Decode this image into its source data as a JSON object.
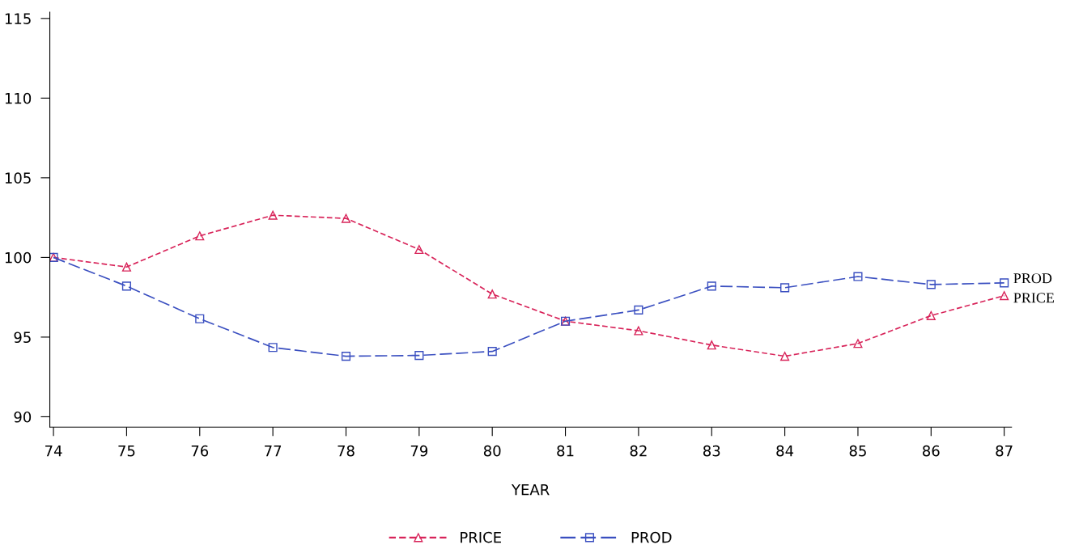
{
  "chart_data": {
    "type": "line",
    "xlabel": "YEAR",
    "x": [
      74,
      75,
      76,
      77,
      78,
      79,
      80,
      81,
      82,
      83,
      84,
      85,
      86,
      87
    ],
    "series": [
      {
        "name": "PRICE",
        "color": "#d8245a",
        "marker": "triangle",
        "line_style": "dashed",
        "values": [
          100,
          99.4,
          101.35,
          102.65,
          102.45,
          100.5,
          97.7,
          96.0,
          95.4,
          94.5,
          93.8,
          94.6,
          96.35,
          97.6
        ]
      },
      {
        "name": "PROD",
        "color": "#3a4fc0",
        "marker": "square",
        "line_style": "dashed",
        "values": [
          100,
          98.2,
          96.15,
          94.35,
          93.8,
          93.85,
          94.1,
          96.0,
          96.7,
          98.2,
          98.1,
          98.8,
          98.3,
          98.4
        ]
      }
    ],
    "xlim": [
      73.95,
      87.1
    ],
    "xticks": [
      74,
      75,
      76,
      77,
      78,
      79,
      80,
      81,
      82,
      83,
      84,
      85,
      86,
      87
    ],
    "ylim": [
      89.35,
      115.4
    ],
    "yticks": [
      90,
      95,
      100,
      105,
      110,
      115
    ],
    "grid": false,
    "legend": "bottom"
  }
}
